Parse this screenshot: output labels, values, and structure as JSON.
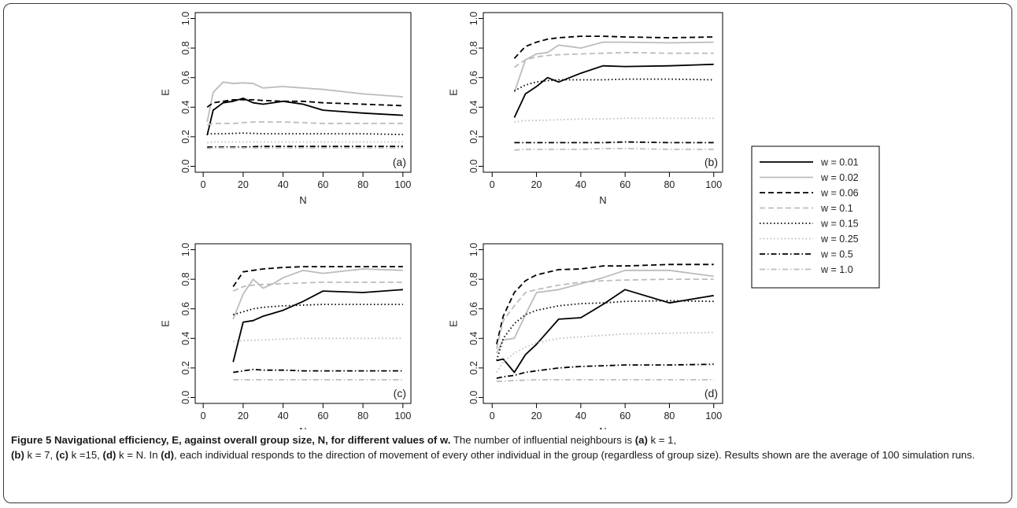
{
  "chart_data": [
    {
      "type": "line",
      "panel_label": "(a)",
      "xlabel": "N",
      "ylabel": "E",
      "xlim": [
        0,
        100
      ],
      "ylim": [
        0,
        1
      ],
      "xticks": [
        0,
        20,
        40,
        60,
        80,
        100
      ],
      "yticks": [
        0.0,
        0.2,
        0.4,
        0.6,
        0.8,
        1.0
      ],
      "series": [
        {
          "name": "w = 0.01",
          "x": [
            2,
            5,
            10,
            15,
            20,
            25,
            30,
            40,
            50,
            60,
            80,
            100
          ],
          "y": [
            0.21,
            0.38,
            0.43,
            0.44,
            0.46,
            0.43,
            0.42,
            0.44,
            0.42,
            0.38,
            0.36,
            0.345
          ]
        },
        {
          "name": "w = 0.02",
          "x": [
            2,
            5,
            10,
            15,
            20,
            25,
            30,
            40,
            50,
            60,
            80,
            100
          ],
          "y": [
            0.3,
            0.5,
            0.57,
            0.56,
            0.565,
            0.56,
            0.53,
            0.54,
            0.53,
            0.52,
            0.49,
            0.47
          ]
        },
        {
          "name": "w = 0.06",
          "x": [
            2,
            5,
            10,
            15,
            20,
            25,
            30,
            40,
            50,
            60,
            80,
            100
          ],
          "y": [
            0.4,
            0.43,
            0.44,
            0.45,
            0.45,
            0.45,
            0.445,
            0.44,
            0.44,
            0.43,
            0.42,
            0.41
          ]
        },
        {
          "name": "w = 0.1",
          "x": [
            2,
            5,
            10,
            15,
            20,
            25,
            30,
            40,
            50,
            60,
            80,
            100
          ],
          "y": [
            0.28,
            0.29,
            0.29,
            0.29,
            0.295,
            0.3,
            0.3,
            0.3,
            0.295,
            0.29,
            0.29,
            0.29
          ]
        },
        {
          "name": "w = 0.15",
          "x": [
            2,
            5,
            10,
            20,
            30,
            40,
            60,
            80,
            100
          ],
          "y": [
            0.22,
            0.22,
            0.22,
            0.225,
            0.22,
            0.22,
            0.22,
            0.22,
            0.215
          ]
        },
        {
          "name": "w = 0.25",
          "x": [
            2,
            5,
            10,
            20,
            30,
            40,
            60,
            80,
            100
          ],
          "y": [
            0.16,
            0.165,
            0.165,
            0.165,
            0.165,
            0.165,
            0.165,
            0.165,
            0.165
          ]
        },
        {
          "name": "w = 0.5",
          "x": [
            2,
            5,
            10,
            20,
            30,
            40,
            60,
            80,
            100
          ],
          "y": [
            0.13,
            0.13,
            0.13,
            0.13,
            0.135,
            0.135,
            0.135,
            0.135,
            0.135
          ]
        },
        {
          "name": "w = 1.0",
          "x": [
            2,
            5,
            10,
            20,
            30,
            40,
            60,
            80,
            100
          ],
          "y": [
            0.12,
            0.125,
            0.125,
            0.125,
            0.125,
            0.125,
            0.125,
            0.125,
            0.125
          ]
        }
      ]
    },
    {
      "type": "line",
      "panel_label": "(b)",
      "xlabel": "N",
      "ylabel": "E",
      "xlim": [
        0,
        100
      ],
      "ylim": [
        0,
        1
      ],
      "xticks": [
        0,
        20,
        40,
        60,
        80,
        100
      ],
      "yticks": [
        0.0,
        0.2,
        0.4,
        0.6,
        0.8,
        1.0
      ],
      "series": [
        {
          "name": "w = 0.01",
          "x": [
            10,
            15,
            20,
            25,
            30,
            40,
            50,
            60,
            80,
            100
          ],
          "y": [
            0.33,
            0.49,
            0.54,
            0.6,
            0.57,
            0.63,
            0.68,
            0.675,
            0.68,
            0.69
          ]
        },
        {
          "name": "w = 0.02",
          "x": [
            10,
            15,
            20,
            25,
            30,
            35,
            40,
            45,
            50,
            60,
            80,
            100
          ],
          "y": [
            0.5,
            0.72,
            0.76,
            0.77,
            0.82,
            0.81,
            0.8,
            0.82,
            0.84,
            0.84,
            0.835,
            0.84
          ]
        },
        {
          "name": "w = 0.06",
          "x": [
            10,
            15,
            20,
            25,
            30,
            40,
            50,
            60,
            80,
            100
          ],
          "y": [
            0.73,
            0.81,
            0.84,
            0.86,
            0.87,
            0.88,
            0.88,
            0.875,
            0.87,
            0.875
          ]
        },
        {
          "name": "w = 0.1",
          "x": [
            10,
            15,
            20,
            25,
            30,
            40,
            50,
            60,
            80,
            100
          ],
          "y": [
            0.67,
            0.72,
            0.74,
            0.75,
            0.755,
            0.76,
            0.765,
            0.77,
            0.765,
            0.765
          ]
        },
        {
          "name": "w = 0.15",
          "x": [
            10,
            15,
            20,
            25,
            30,
            40,
            50,
            60,
            80,
            100
          ],
          "y": [
            0.51,
            0.55,
            0.57,
            0.58,
            0.585,
            0.585,
            0.585,
            0.59,
            0.59,
            0.585
          ]
        },
        {
          "name": "w = 0.25",
          "x": [
            10,
            15,
            20,
            30,
            40,
            50,
            60,
            80,
            100
          ],
          "y": [
            0.3,
            0.31,
            0.31,
            0.315,
            0.32,
            0.32,
            0.325,
            0.325,
            0.325
          ]
        },
        {
          "name": "w = 0.5",
          "x": [
            10,
            15,
            20,
            30,
            40,
            50,
            60,
            80,
            100
          ],
          "y": [
            0.16,
            0.16,
            0.16,
            0.16,
            0.16,
            0.16,
            0.165,
            0.16,
            0.16
          ]
        },
        {
          "name": "w = 1.0",
          "x": [
            10,
            15,
            20,
            30,
            40,
            50,
            60,
            80,
            100
          ],
          "y": [
            0.11,
            0.115,
            0.115,
            0.115,
            0.115,
            0.12,
            0.12,
            0.115,
            0.115
          ]
        }
      ]
    },
    {
      "type": "line",
      "panel_label": "(c)",
      "xlabel": "N",
      "ylabel": "E",
      "xlim": [
        0,
        100
      ],
      "ylim": [
        0,
        1
      ],
      "xticks": [
        0,
        20,
        40,
        60,
        80,
        100
      ],
      "yticks": [
        0.0,
        0.2,
        0.4,
        0.6,
        0.8,
        1.0
      ],
      "series": [
        {
          "name": "w = 0.01",
          "x": [
            15,
            20,
            25,
            30,
            40,
            50,
            60,
            80,
            100
          ],
          "y": [
            0.24,
            0.51,
            0.52,
            0.55,
            0.59,
            0.65,
            0.72,
            0.71,
            0.73
          ]
        },
        {
          "name": "w = 0.02",
          "x": [
            15,
            20,
            25,
            30,
            35,
            40,
            50,
            60,
            80,
            100
          ],
          "y": [
            0.53,
            0.7,
            0.8,
            0.74,
            0.77,
            0.81,
            0.86,
            0.84,
            0.87,
            0.86
          ]
        },
        {
          "name": "w = 0.06",
          "x": [
            15,
            20,
            25,
            30,
            40,
            50,
            60,
            80,
            100
          ],
          "y": [
            0.75,
            0.85,
            0.86,
            0.87,
            0.88,
            0.885,
            0.885,
            0.885,
            0.885
          ]
        },
        {
          "name": "w = 0.1",
          "x": [
            15,
            20,
            25,
            30,
            40,
            50,
            60,
            80,
            100
          ],
          "y": [
            0.72,
            0.75,
            0.76,
            0.765,
            0.77,
            0.775,
            0.78,
            0.78,
            0.78
          ]
        },
        {
          "name": "w = 0.15",
          "x": [
            15,
            20,
            25,
            30,
            40,
            50,
            60,
            80,
            100
          ],
          "y": [
            0.56,
            0.58,
            0.6,
            0.61,
            0.62,
            0.625,
            0.63,
            0.63,
            0.63
          ]
        },
        {
          "name": "w = 0.25",
          "x": [
            15,
            20,
            30,
            40,
            50,
            60,
            80,
            100
          ],
          "y": [
            0.38,
            0.385,
            0.39,
            0.395,
            0.4,
            0.4,
            0.4,
            0.4
          ]
        },
        {
          "name": "w = 0.5",
          "x": [
            15,
            20,
            25,
            30,
            40,
            50,
            60,
            80,
            100
          ],
          "y": [
            0.17,
            0.18,
            0.19,
            0.185,
            0.185,
            0.18,
            0.18,
            0.18,
            0.18
          ]
        },
        {
          "name": "w = 1.0",
          "x": [
            15,
            20,
            30,
            40,
            50,
            60,
            80,
            100
          ],
          "y": [
            0.12,
            0.12,
            0.12,
            0.12,
            0.12,
            0.12,
            0.12,
            0.12
          ]
        }
      ]
    },
    {
      "type": "line",
      "panel_label": "(d)",
      "xlabel": "N",
      "ylabel": "E",
      "xlim": [
        0,
        100
      ],
      "ylim": [
        0,
        1
      ],
      "xticks": [
        0,
        20,
        40,
        60,
        80,
        100
      ],
      "yticks": [
        0.0,
        0.2,
        0.4,
        0.6,
        0.8,
        1.0
      ],
      "series": [
        {
          "name": "w = 0.01",
          "x": [
            2,
            5,
            10,
            15,
            20,
            30,
            40,
            50,
            60,
            80,
            100
          ],
          "y": [
            0.25,
            0.26,
            0.17,
            0.29,
            0.36,
            0.53,
            0.54,
            0.63,
            0.73,
            0.64,
            0.69
          ]
        },
        {
          "name": "w = 0.02",
          "x": [
            2,
            5,
            10,
            15,
            20,
            30,
            40,
            50,
            60,
            80,
            100
          ],
          "y": [
            0.3,
            0.39,
            0.4,
            0.56,
            0.71,
            0.73,
            0.77,
            0.81,
            0.86,
            0.86,
            0.82
          ]
        },
        {
          "name": "w = 0.06",
          "x": [
            2,
            5,
            10,
            15,
            20,
            30,
            40,
            50,
            60,
            80,
            100
          ],
          "y": [
            0.36,
            0.55,
            0.71,
            0.79,
            0.83,
            0.865,
            0.87,
            0.89,
            0.89,
            0.9,
            0.9
          ]
        },
        {
          "name": "w = 0.1",
          "x": [
            2,
            5,
            10,
            15,
            20,
            30,
            40,
            50,
            60,
            80,
            100
          ],
          "y": [
            0.33,
            0.52,
            0.62,
            0.71,
            0.73,
            0.76,
            0.78,
            0.79,
            0.795,
            0.8,
            0.8
          ]
        },
        {
          "name": "w = 0.15",
          "x": [
            2,
            5,
            10,
            15,
            20,
            30,
            40,
            50,
            60,
            80,
            100
          ],
          "y": [
            0.25,
            0.4,
            0.5,
            0.56,
            0.59,
            0.62,
            0.635,
            0.64,
            0.65,
            0.655,
            0.65
          ]
        },
        {
          "name": "w = 0.25",
          "x": [
            2,
            5,
            10,
            15,
            20,
            30,
            40,
            50,
            60,
            80,
            100
          ],
          "y": [
            0.17,
            0.24,
            0.3,
            0.34,
            0.37,
            0.4,
            0.41,
            0.42,
            0.43,
            0.435,
            0.44
          ]
        },
        {
          "name": "w = 0.5",
          "x": [
            2,
            5,
            10,
            15,
            20,
            30,
            40,
            50,
            60,
            80,
            100
          ],
          "y": [
            0.13,
            0.14,
            0.15,
            0.17,
            0.18,
            0.2,
            0.21,
            0.215,
            0.22,
            0.22,
            0.225
          ]
        },
        {
          "name": "w = 1.0",
          "x": [
            2,
            5,
            10,
            20,
            30,
            40,
            50,
            60,
            80,
            100
          ],
          "y": [
            0.11,
            0.11,
            0.115,
            0.12,
            0.12,
            0.12,
            0.12,
            0.12,
            0.12,
            0.12
          ]
        }
      ]
    }
  ],
  "legend": {
    "entries": [
      "w = 0.01",
      "w = 0.02",
      "w = 0.06",
      "w = 0.1",
      "w = 0.15",
      "w = 0.25",
      "w = 0.5",
      "w = 1.0"
    ],
    "styles": [
      {
        "color": "#000000",
        "dash": "",
        "width": 1.8
      },
      {
        "color": "#bcbcbc",
        "dash": "",
        "width": 1.8
      },
      {
        "color": "#000000",
        "dash": "7,4",
        "width": 1.8
      },
      {
        "color": "#bcbcbc",
        "dash": "7,4",
        "width": 1.8
      },
      {
        "color": "#000000",
        "dash": "1.5,3",
        "width": 1.8
      },
      {
        "color": "#bcbcbc",
        "dash": "1.5,3",
        "width": 1.8
      },
      {
        "color": "#000000",
        "dash": "7,3,1.5,3",
        "width": 1.8
      },
      {
        "color": "#bcbcbc",
        "dash": "7,3,1.5,3",
        "width": 1.8
      }
    ]
  },
  "caption": {
    "bold": "Figure 5 Navigational efficiency, E, against overall group size, N, for different values of w.",
    "t1": " The number of influential neighbours is ",
    "a": "(a)",
    "a_text": " k = 1,",
    "b": "(b)",
    "b_text": " k = 7, ",
    "c": "(c)",
    "c_text": " k =15, ",
    "d": "(d)",
    "d_text": " k = N. In ",
    "d2": "(d)",
    "t2": ", each individual responds to the direction of movement of every other individual in the group (regardless of group size). Results shown are the average of 100 simulation runs."
  }
}
